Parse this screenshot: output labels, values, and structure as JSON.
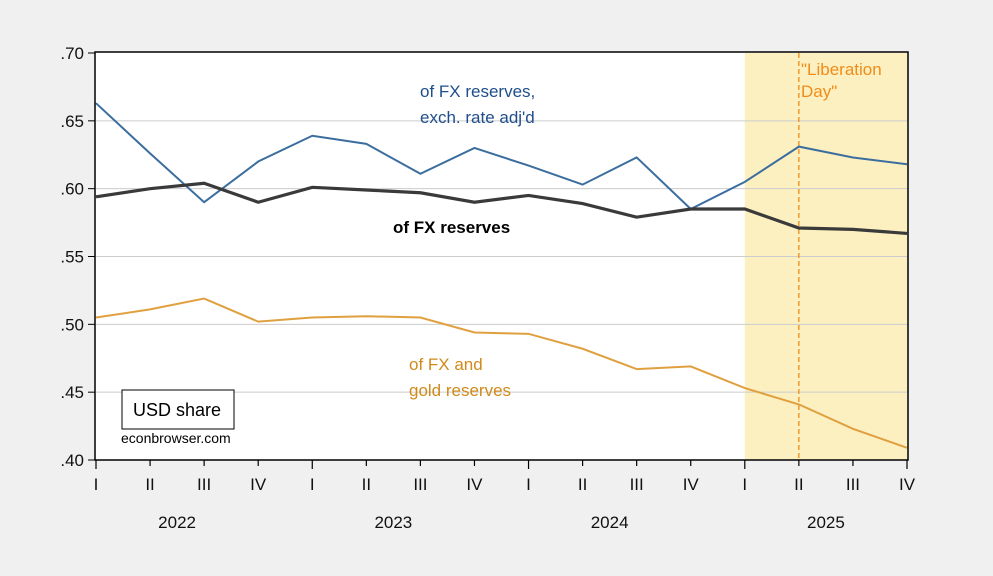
{
  "chart_data": {
    "type": "line",
    "title": "",
    "xlabel": "",
    "ylabel": "",
    "ylim": [
      0.4,
      0.7
    ],
    "yticks": [
      0.4,
      0.45,
      0.5,
      0.55,
      0.6,
      0.65,
      0.7
    ],
    "ytick_labels": [
      ".40",
      ".45",
      ".50",
      ".55",
      ".60",
      ".65",
      ".70"
    ],
    "grid": true,
    "x": [
      "2022Q1",
      "2022Q2",
      "2022Q3",
      "2022Q4",
      "2023Q1",
      "2023Q2",
      "2023Q3",
      "2023Q4",
      "2024Q1",
      "2024Q2",
      "2024Q3",
      "2024Q4",
      "2025Q1",
      "2025Q2",
      "2025Q3",
      "2025Q4"
    ],
    "quarter_labels": [
      "I",
      "II",
      "III",
      "IV",
      "I",
      "II",
      "III",
      "IV",
      "I",
      "II",
      "III",
      "IV",
      "I",
      "II",
      "III",
      "IV"
    ],
    "year_labels": [
      "2022",
      "2023",
      "2024",
      "2025"
    ],
    "series": [
      {
        "name": "of FX reserves, exch. rate adj'd",
        "label_lines": [
          "of FX reserves,",
          "exch. rate adj'd"
        ],
        "color": "#3b6e9e",
        "label_color": "#1f4e8c",
        "values": [
          0.663,
          0.626,
          0.59,
          0.62,
          0.639,
          0.633,
          0.611,
          0.63,
          0.617,
          0.603,
          0.623,
          0.585,
          0.605,
          0.631,
          0.623,
          0.618
        ]
      },
      {
        "name": "of FX reserves",
        "label_lines": [
          "of FX reserves"
        ],
        "color": "#3a3a3a",
        "label_color": "#000000",
        "values": [
          0.594,
          0.6,
          0.604,
          0.59,
          0.601,
          0.599,
          0.597,
          0.59,
          0.595,
          0.589,
          0.579,
          0.585,
          0.585,
          0.571,
          0.57,
          0.567
        ]
      },
      {
        "name": "of FX and gold reserves",
        "label_lines": [
          "of FX and",
          "gold reserves"
        ],
        "color": "#e0a040",
        "label_color": "#d08a1a",
        "values": [
          0.505,
          0.511,
          0.519,
          0.502,
          0.505,
          0.506,
          0.505,
          0.494,
          0.493,
          0.482,
          0.467,
          0.469,
          0.453,
          0.441,
          0.423,
          0.409
        ]
      }
    ],
    "shaded_region": {
      "from": "2025Q1",
      "to": "2025Q4",
      "color": "#fcf0c0"
    },
    "vline": {
      "at": "2025Q2",
      "label_lines": [
        "\"Liberation",
        "Day\""
      ],
      "color": "#f08c1a"
    },
    "legend_box": {
      "text": "USD share"
    },
    "source": "econbrowser.com"
  }
}
